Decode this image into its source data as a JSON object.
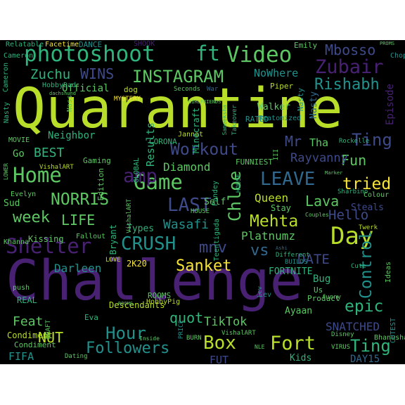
{
  "palette": {
    "yellow": "#f7e436",
    "lime": "#b8de29",
    "green": "#5dc863",
    "teal": "#2fb47c",
    "cyan": "#21918c",
    "blue": "#31688e",
    "indigo": "#3e4a89",
    "purple": "#482173",
    "background": "#000000"
  },
  "words": [
    "Quarantine",
    "Challenge",
    "photoshoot",
    "Video",
    "ft",
    "INSTAGRAM",
    "Zubair",
    "Mbosso",
    "Rishabh",
    "WINS",
    "Zuchu",
    "Home",
    "Game",
    "amp",
    "LEAVE",
    "Workout",
    "Day",
    "tried",
    "LAST",
    "NORRIS",
    "Chloe",
    "Shelter",
    "CRUSH",
    "Sanket",
    "Mehta",
    "Control",
    "epic",
    "Box",
    "Fort",
    "Hour",
    "Followers",
    "Fun",
    "Ting",
    "Diamond",
    "Lava",
    "Hello",
    "Queen",
    "Wasafi",
    "LIFE",
    "week",
    "mnv",
    "vs",
    "Platnumz",
    "DATE",
    "Darleen",
    "NUT",
    "quot",
    "TikTok",
    "Feat",
    "SNATCHED",
    "EP",
    "Episode",
    "Results",
    "BEST",
    "Mr",
    "Rayvanny",
    "Tha",
    "Official",
    "Neighbor",
    "Nasty",
    "Walker",
    "NoWhere",
    "Minecraft",
    "FUNNIEST",
    "Edition",
    "Bryant",
    "Music",
    "Snow",
    "Steals",
    "FORTNITE",
    "Bug",
    "Us",
    "Go",
    "Gaming",
    "Self",
    "Stay",
    "Ayaan",
    "Product",
    "DAY15",
    "FIFA",
    "Condiment",
    "transformation",
    "Kids",
    "FUT",
    "Disney",
    "VIRUS",
    "Bhanushali",
    "CUTEST",
    "Ideas",
    "DRAFT",
    "Descendants",
    "REAL",
    "Eva",
    "ROOMS",
    "HobbyPig",
    "2K20",
    "Types",
    "Kissing",
    "Fallout",
    "Khanna",
    "push",
    "Sud",
    "Evelyn",
    "MOVIE",
    "Roblox",
    "Bhavin",
    "LOWER",
    "Cameron",
    "Relatable",
    "Facetime",
    "DANCE",
    "SHOOK",
    "FAT",
    "Emily",
    "PROMS",
    "Choppa",
    "HobbyDad",
    "dachshund",
    "Nass",
    "MYSTERY",
    "dog",
    "Seconds",
    "War",
    "Piper",
    "Jannat",
    "CORONA",
    "GLOBAL",
    "RATED",
    "Sameeksha",
    "Takeover",
    "Reatomized",
    "Sharbino",
    "III",
    "Starts",
    "Rockelle",
    "Marker",
    "Colour",
    "Couples",
    "Twerk",
    "Cute",
    "BUILDS",
    "Different",
    "Ashi",
    "Lev",
    "funny",
    "BURN",
    "PRICE",
    "Dating",
    "Inside",
    "BELLY",
    "YOGA",
    "LOVE",
    "Teentigada",
    "Pandey",
    "HOUSE",
    "VishalART",
    "NLE",
    "GIRLFRIENDS",
    "themes",
    "SHRED",
    "Stay",
    "PANDEMIC",
    "Naina",
    "Sawyer",
    "Daddy",
    "Claire",
    "COOKING",
    "LIKELY",
    "GamingDad"
  ]
}
